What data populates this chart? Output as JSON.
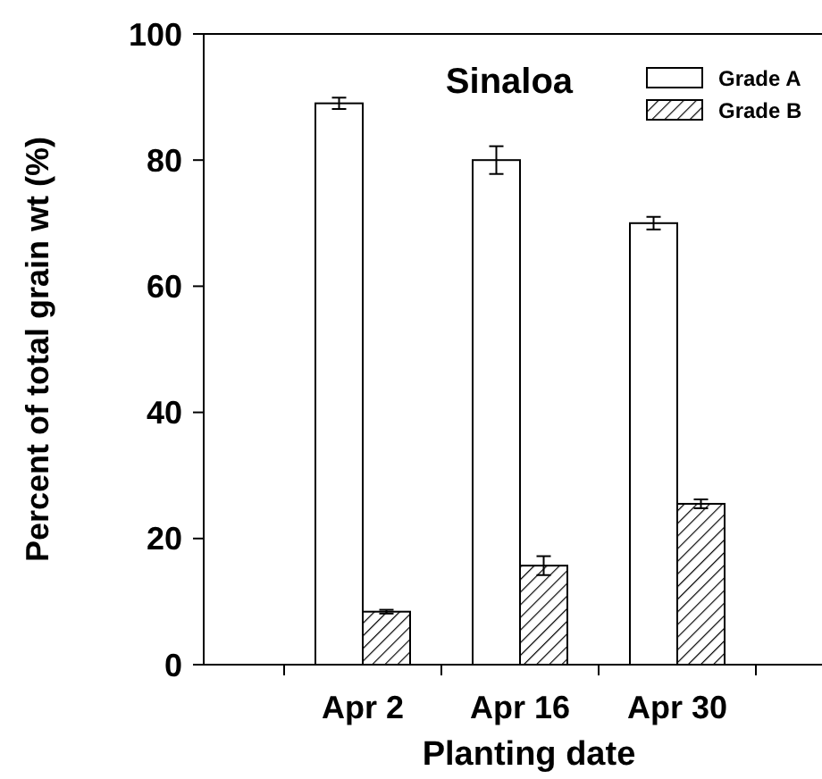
{
  "chart_data": {
    "type": "bar",
    "title": "Sinaloa",
    "xlabel": "Planting date",
    "ylabel": "Percent of total grain wt (%)",
    "categories": [
      "Apr 2",
      "Apr 16",
      "Apr 30"
    ],
    "series": [
      {
        "name": "Grade A",
        "color": "#ffffff",
        "values": [
          89.0,
          80.0,
          70.0
        ],
        "errors": [
          0.9,
          2.2,
          1.0
        ]
      },
      {
        "name": "Grade B",
        "color": "#000000",
        "values": [
          8.4,
          15.7,
          25.5
        ],
        "errors": [
          0.3,
          1.5,
          0.7
        ]
      }
    ],
    "ylim": [
      0,
      100
    ],
    "yticks": [
      0,
      20,
      40,
      60,
      80,
      100
    ],
    "grid": false,
    "legend": "top right"
  }
}
